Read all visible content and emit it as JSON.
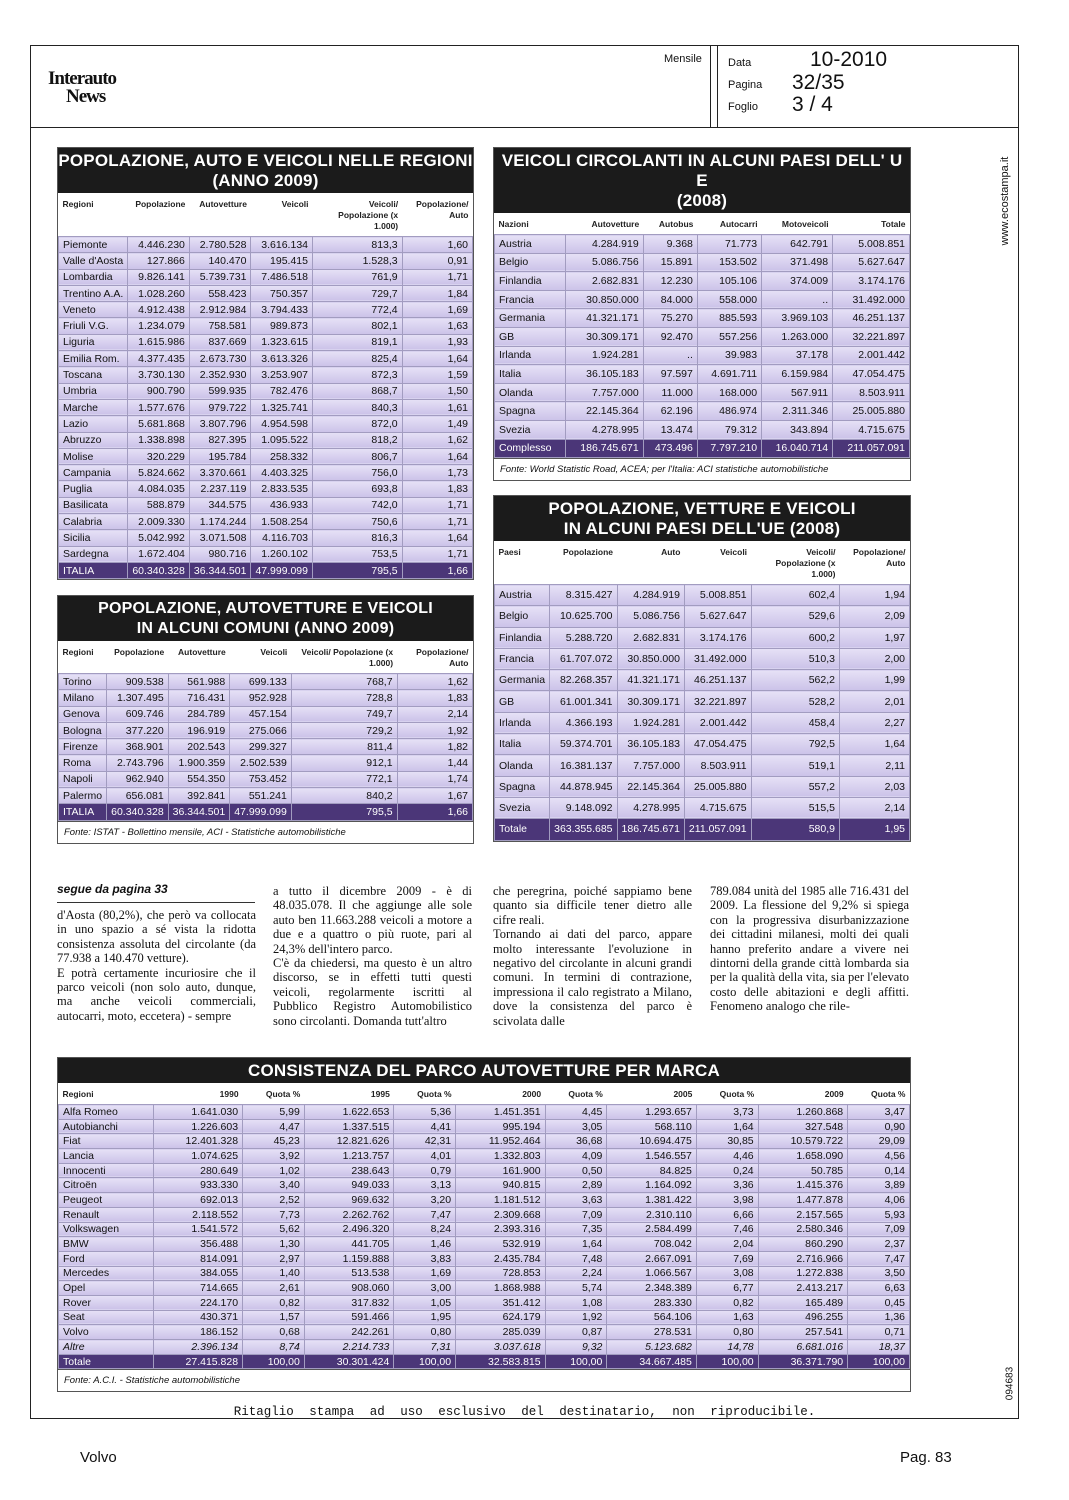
{
  "header": {
    "logo_lines": [
      "Interauto",
      "News"
    ],
    "period": "Mensile",
    "data_label": "Data",
    "data_value": "10-2010",
    "pagina_label": "Pagina",
    "pagina_value": "32/35",
    "foglio_label": "Foglio",
    "foglio_value": "3 / 4"
  },
  "side": {
    "website": "www.ecostampa.it",
    "code": "094683"
  },
  "tables": [
    {
      "title_lines": [
        "POPOLAZIONE, AUTO E VEICOLI NELLE REGIONI",
        "(ANNO 2009)"
      ],
      "headers": [
        "Regioni",
        "Popolazione",
        "Autovetture",
        "Veicoli",
        "Veicoli/ Popolazione (x 1.000)",
        "Popolazione/ Auto"
      ],
      "rows": [
        [
          "Piemonte",
          "4.446.230",
          "2.780.528",
          "3.616.134",
          "813,3",
          "1,60"
        ],
        [
          "Valle d'Aosta",
          "127.866",
          "140.470",
          "195.415",
          "1.528,3",
          "0,91"
        ],
        [
          "Lombardia",
          "9.826.141",
          "5.739.731",
          "7.486.518",
          "761,9",
          "1,71"
        ],
        [
          "Trentino A.A.",
          "1.028.260",
          "558.423",
          "750.357",
          "729,7",
          "1,84"
        ],
        [
          "Veneto",
          "4.912.438",
          "2.912.984",
          "3.794.433",
          "772,4",
          "1,69"
        ],
        [
          "Friuli V.G.",
          "1.234.079",
          "758.581",
          "989.873",
          "802,1",
          "1,63"
        ],
        [
          "Liguria",
          "1.615.986",
          "837.669",
          "1.323.615",
          "819,1",
          "1,93"
        ],
        [
          "Emilia Rom.",
          "4.377.435",
          "2.673.730",
          "3.613.326",
          "825,4",
          "1,64"
        ],
        [
          "Toscana",
          "3.730.130",
          "2.352.930",
          "3.253.907",
          "872,3",
          "1,59"
        ],
        [
          "Umbria",
          "900.790",
          "599.935",
          "782.476",
          "868,7",
          "1,50"
        ],
        [
          "Marche",
          "1.577.676",
          "979.722",
          "1.325.741",
          "840,3",
          "1,61"
        ],
        [
          "Lazio",
          "5.681.868",
          "3.807.796",
          "4.954.598",
          "872,0",
          "1,49"
        ],
        [
          "Abruzzo",
          "1.338.898",
          "827.395",
          "1.095.522",
          "818,2",
          "1,62"
        ],
        [
          "Molise",
          "320.229",
          "195.784",
          "258.332",
          "806,7",
          "1,64"
        ],
        [
          "Campania",
          "5.824.662",
          "3.370.661",
          "4.403.325",
          "756,0",
          "1,73"
        ],
        [
          "Puglia",
          "4.084.035",
          "2.237.119",
          "2.833.535",
          "693,8",
          "1,83"
        ],
        [
          "Basilicata",
          "588.879",
          "344.575",
          "436.933",
          "742,0",
          "1,71"
        ],
        [
          "Calabria",
          "2.009.330",
          "1.174.244",
          "1.508.254",
          "750,6",
          "1,71"
        ],
        [
          "Sicilia",
          "5.042.992",
          "3.071.508",
          "4.116.703",
          "816,3",
          "1,64"
        ],
        [
          "Sardegna",
          "1.672.404",
          "980.716",
          "1.260.102",
          "753,5",
          "1,71"
        ]
      ],
      "total": [
        "ITALIA",
        "60.340.328",
        "36.344.501",
        "47.999.099",
        "795,5",
        "1,66"
      ]
    },
    {
      "title_lines": [
        "POPOLAZIONE, AUTOVETTURE E VEICOLI",
        "IN ALCUNI COMUNI (ANNO 2009)"
      ],
      "headers": [
        "Regioni",
        "Popolazione",
        "Autovetture",
        "Veicoli",
        "Veicoli/ Popolazione (x 1.000)",
        "Popolazione/ Auto"
      ],
      "rows": [
        [
          "Torino",
          "909.538",
          "561.988",
          "699.133",
          "768,7",
          "1,62"
        ],
        [
          "Milano",
          "1.307.495",
          "716.431",
          "952.928",
          "728,8",
          "1,83"
        ],
        [
          "Genova",
          "609.746",
          "284.789",
          "457.154",
          "749,7",
          "2,14"
        ],
        [
          "Bologna",
          "377.220",
          "196.919",
          "275.066",
          "729,2",
          "1,92"
        ],
        [
          "Firenze",
          "368.901",
          "202.543",
          "299.327",
          "811,4",
          "1,82"
        ],
        [
          "Roma",
          "2.743.796",
          "1.900.359",
          "2.502.539",
          "912,1",
          "1,44"
        ],
        [
          "Napoli",
          "962.940",
          "554.350",
          "753.452",
          "772,1",
          "1,74"
        ],
        [
          "Palermo",
          "656.081",
          "392.841",
          "551.241",
          "840,2",
          "1,67"
        ]
      ],
      "total": [
        "ITALIA",
        "60.340.328",
        "36.344.501",
        "47.999.099",
        "795,5",
        "1,66"
      ],
      "source": "Fonte: ISTAT - Bollettino mensile, ACI - Statistiche automobilistiche"
    },
    {
      "title_lines": [
        "VEICOLI CIRCOLANTI IN ALCUNI PAESI DELL' U E",
        "(2008)"
      ],
      "headers": [
        "Nazioni",
        "Autovetture",
        "Autobus",
        "Autocarri",
        "Motoveicoli",
        "Totale"
      ],
      "rows": [
        [
          "Austria",
          "4.284.919",
          "9.368",
          "71.773",
          "642.791",
          "5.008.851"
        ],
        [
          "Belgio",
          "5.086.756",
          "15.891",
          "153.502",
          "371.498",
          "5.627.647"
        ],
        [
          "Finlandia",
          "2.682.831",
          "12.230",
          "105.106",
          "374.009",
          "3.174.176"
        ],
        [
          "Francia",
          "30.850.000",
          "84.000",
          "558.000",
          "..",
          "31.492.000"
        ],
        [
          "Germania",
          "41.321.171",
          "75.270",
          "885.593",
          "3.969.103",
          "46.251.137"
        ],
        [
          "GB",
          "30.309.171",
          "92.470",
          "557.256",
          "1.263.000",
          "32.221.897"
        ],
        [
          "Irlanda",
          "1.924.281",
          "..",
          "39.983",
          "37.178",
          "2.001.442"
        ],
        [
          "Italia",
          "36.105.183",
          "97.597",
          "4.691.711",
          "6.159.984",
          "47.054.475"
        ],
        [
          "Olanda",
          "7.757.000",
          "11.000",
          "168.000",
          "567.911",
          "8.503.911"
        ],
        [
          "Spagna",
          "22.145.364",
          "62.196",
          "486.974",
          "2.311.346",
          "25.005.880"
        ],
        [
          "Svezia",
          "4.278.995",
          "13.474",
          "79.312",
          "343.894",
          "4.715.675"
        ]
      ],
      "total": [
        "Complesso",
        "186.745.671",
        "473.496",
        "7.797.210",
        "16.040.714",
        "211.057.091"
      ],
      "source": "Fonte: World Statistic Road, ACEA; per l'Italia: ACI statistiche automobilistiche"
    },
    {
      "title_lines": [
        "POPOLAZIONE, VETTURE E VEICOLI",
        "IN ALCUNI PAESI DELL'UE (2008)"
      ],
      "headers": [
        "Paesi",
        "Popolazione",
        "Auto",
        "Veicoli",
        "Veicoli/ Popolazione (x 1.000)",
        "Popolazione/ Auto"
      ],
      "rows": [
        [
          "Austria",
          "8.315.427",
          "4.284.919",
          "5.008.851",
          "602,4",
          "1,94"
        ],
        [
          "Belgio",
          "10.625.700",
          "5.086.756",
          "5.627.647",
          "529,6",
          "2,09"
        ],
        [
          "Finlandia",
          "5.288.720",
          "2.682.831",
          "3.174.176",
          "600,2",
          "1,97"
        ],
        [
          "Francia",
          "61.707.072",
          "30.850.000",
          "31.492.000",
          "510,3",
          "2,00"
        ],
        [
          "Germania",
          "82.268.357",
          "41.321.171",
          "46.251.137",
          "562,2",
          "1,99"
        ],
        [
          "GB",
          "61.001.341",
          "30.309.171",
          "32.221.897",
          "528,2",
          "2,01"
        ],
        [
          "Irlanda",
          "4.366.193",
          "1.924.281",
          "2.001.442",
          "458,4",
          "2,27"
        ],
        [
          "Italia",
          "59.374.701",
          "36.105.183",
          "47.054.475",
          "792,5",
          "1,64"
        ],
        [
          "Olanda",
          "16.381.137",
          "7.757.000",
          "8.503.911",
          "519,1",
          "2,11"
        ],
        [
          "Spagna",
          "44.878.945",
          "22.145.364",
          "25.005.880",
          "557,2",
          "2,03"
        ],
        [
          "Svezia",
          "9.148.092",
          "4.278.995",
          "4.715.675",
          "515,5",
          "2,14"
        ]
      ],
      "total": [
        "Totale",
        "363.355.685",
        "186.745.671",
        "211.057.091",
        "580,9",
        "1,95"
      ]
    },
    {
      "title_lines": [
        "CONSISTENZA DEL PARCO AUTOVETTURE PER MARCA"
      ],
      "headers": [
        "Regioni",
        "1990",
        "Quota %",
        "1995",
        "Quota %",
        "2000",
        "Quota %",
        "2005",
        "Quota %",
        "2009",
        "Quota %"
      ],
      "rows": [
        [
          "Alfa Romeo",
          "1.641.030",
          "5,99",
          "1.622.653",
          "5,36",
          "1.451.351",
          "4,45",
          "1.293.657",
          "3,73",
          "1.260.868",
          "3,47"
        ],
        [
          "Autobianchi",
          "1.226.603",
          "4,47",
          "1.337.515",
          "4,41",
          "995.194",
          "3,05",
          "568.110",
          "1,64",
          "327.548",
          "0,90"
        ],
        [
          "Fiat",
          "12.401.328",
          "45,23",
          "12.821.626",
          "42,31",
          "11.952.464",
          "36,68",
          "10.694.475",
          "30,85",
          "10.579.722",
          "29,09"
        ],
        [
          "Lancia",
          "1.074.625",
          "3,92",
          "1.213.757",
          "4,01",
          "1.332.803",
          "4,09",
          "1.546.557",
          "4,46",
          "1.658.090",
          "4,56"
        ],
        [
          "Innocenti",
          "280.649",
          "1,02",
          "238.643",
          "0,79",
          "161.900",
          "0,50",
          "84.825",
          "0,24",
          "50.785",
          "0,14"
        ],
        [
          "Citroën",
          "933.330",
          "3,40",
          "949.033",
          "3,13",
          "940.815",
          "2,89",
          "1.164.092",
          "3,36",
          "1.415.376",
          "3,89"
        ],
        [
          "Peugeot",
          "692.013",
          "2,52",
          "969.632",
          "3,20",
          "1.181.512",
          "3,63",
          "1.381.422",
          "3,98",
          "1.477.878",
          "4,06"
        ],
        [
          "Renault",
          "2.118.552",
          "7,73",
          "2.262.762",
          "7,47",
          "2.309.668",
          "7,09",
          "2.310.110",
          "6,66",
          "2.157.565",
          "5,93"
        ],
        [
          "Volkswagen",
          "1.541.572",
          "5,62",
          "2.496.320",
          "8,24",
          "2.393.316",
          "7,35",
          "2.584.499",
          "7,46",
          "2.580.346",
          "7,09"
        ],
        [
          "BMW",
          "356.488",
          "1,30",
          "441.705",
          "1,46",
          "532.919",
          "1,64",
          "708.042",
          "2,04",
          "860.290",
          "2,37"
        ],
        [
          "Ford",
          "814.091",
          "2,97",
          "1.159.888",
          "3,83",
          "2.435.784",
          "7,48",
          "2.667.091",
          "7,69",
          "2.716.966",
          "7,47"
        ],
        [
          "Mercedes",
          "384.055",
          "1,40",
          "513.538",
          "1,69",
          "728.853",
          "2,24",
          "1.066.567",
          "3,08",
          "1.272.838",
          "3,50"
        ],
        [
          "Opel",
          "714.665",
          "2,61",
          "908.060",
          "3,00",
          "1.868.988",
          "5,74",
          "2.348.389",
          "6,77",
          "2.413.217",
          "6,63"
        ],
        [
          "Rover",
          "224.170",
          "0,82",
          "317.832",
          "1,05",
          "351.412",
          "1,08",
          "283.330",
          "0,82",
          "165.489",
          "0,45"
        ],
        [
          "Seat",
          "430.371",
          "1,57",
          "591.466",
          "1,95",
          "624.179",
          "1,92",
          "564.106",
          "1,63",
          "496.255",
          "1,36"
        ],
        [
          "Volvo",
          "186.152",
          "0,68",
          "242.261",
          "0,80",
          "285.039",
          "0,87",
          "278.531",
          "0,80",
          "257.541",
          "0,71"
        ],
        [
          "Altre",
          "2.396.134",
          "8,74",
          "2.214.733",
          "7,31",
          "3.037.618",
          "9,32",
          "5.123.682",
          "14,78",
          "6.681.016",
          "18,37"
        ]
      ],
      "total": [
        "Totale",
        "27.415.828",
        "100,00",
        "30.301.424",
        "100,00",
        "32.583.815",
        "100,00",
        "34.667.485",
        "100,00",
        "36.371.790",
        "100,00"
      ],
      "source": "Fonte: A.C.I. - Statistiche automobilistiche"
    }
  ],
  "article": {
    "intro": "segue da pagina 33",
    "columns": [
      [
        "d'Aosta (80,2%), che però va collocata in uno spazio a sé vista la ridotta consistenza assoluta del circolante (da 77.938 a 140.470 vetture).",
        "E potrà certamente incuriosire che il parco veicoli (non solo auto, dunque, ma anche veicoli commerciali, autocarri, moto, eccetera) - sempre"
      ],
      [
        "a tutto il dicembre 2009 - è di 48.035.078. Il che aggiunge alle sole auto ben 11.663.288 veicoli a motore a due e a quattro o più ruote, pari al 24,3% dell'intero parco.",
        "C'è da chiedersi, ma questo è un altro discorso, se in effetti tutti questi veicoli, regolarmente iscritti al Pubblico Registro Automobilistico sono circolanti. Domanda tutt'altro"
      ],
      [
        "che peregrina, poiché sappiamo bene quanto sia difficile tener dietro alle cifre reali.",
        "Tornando ai dati del parco, appare molto interessante l'evoluzione in negativo del circolante in alcuni grandi comuni. In termini di contrazione, impressiona il calo registrato a Milano, dove la consistenza del parco è scivolata dalle"
      ],
      [
        "789.084 unità del 1985 alle 716.431 del 2009. La flessione del 9,2% si spiega con la progressiva disurbanizzazione dei cittadini milanesi, molti dei quali hanno preferito andare a vivere nei dintorni della grande città lombarda sia per la qualità della vita, sia per l'elevato costo delle abitazioni e degli affitti. Fenomeno analogo che rile-"
      ]
    ]
  },
  "footer": {
    "notice": "Ritaglio stampa ad uso esclusivo del destinatario, non riproducibile.",
    "brand": "Volvo",
    "page": "Pag. 83"
  }
}
